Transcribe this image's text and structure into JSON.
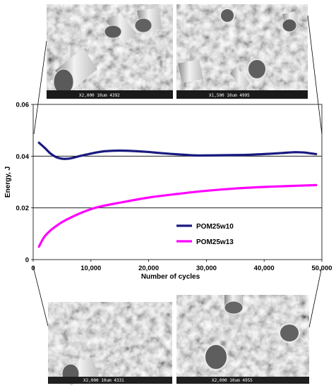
{
  "chart_data": {
    "type": "line",
    "xlabel": "Number of cycles",
    "ylabel": "Energy, J",
    "xlim": [
      0,
      50000
    ],
    "ylim": [
      0,
      0.06
    ],
    "xticks": [
      0,
      10000,
      20000,
      30000,
      40000,
      50000
    ],
    "xtick_labels": [
      "0",
      "10,000",
      "20,000",
      "30,000",
      "40,000",
      "50,000"
    ],
    "yticks": [
      0,
      0.02,
      0.04,
      0.06
    ],
    "ytick_labels": [
      "0",
      "0.02",
      "0.04",
      "0.06"
    ],
    "grid": "horizontal",
    "legend_position": "center-right",
    "series": [
      {
        "name": "POM25w10",
        "color": "#1a1a80",
        "x": [
          1000,
          2000,
          3000,
          4000,
          5000,
          6000,
          7000,
          8000,
          10000,
          12000,
          14000,
          16000,
          18000,
          20000,
          22000,
          25000,
          28000,
          31000,
          34000,
          37000,
          40000,
          43000,
          45000,
          46000,
          47000,
          48000,
          49000
        ],
        "y": [
          0.0452,
          0.0432,
          0.041,
          0.0396,
          0.039,
          0.039,
          0.0394,
          0.04,
          0.041,
          0.0418,
          0.0421,
          0.0421,
          0.0419,
          0.0416,
          0.0412,
          0.0407,
          0.0403,
          0.0403,
          0.0404,
          0.0405,
          0.0408,
          0.0412,
          0.0415,
          0.0415,
          0.0414,
          0.0411,
          0.0408
        ]
      },
      {
        "name": "POM25w13",
        "color": "#ff00ff",
        "x": [
          1000,
          1500,
          2000,
          3000,
          4000,
          5000,
          6000,
          8000,
          10000,
          12000,
          15000,
          20000,
          25000,
          30000,
          35000,
          40000,
          45000,
          49000
        ],
        "y": [
          0.005,
          0.0072,
          0.009,
          0.0113,
          0.013,
          0.0145,
          0.0157,
          0.0178,
          0.0195,
          0.0207,
          0.022,
          0.024,
          0.0254,
          0.0266,
          0.0275,
          0.0281,
          0.0285,
          0.0288
        ]
      }
    ]
  },
  "micrographs": {
    "top_left_caption": "X2,000  10um  4392",
    "top_right_caption": "X1,500  10um  4995",
    "bottom_left_caption": "X2,000  10um  4331",
    "bottom_right_caption": "X2,000  10um  4955"
  }
}
